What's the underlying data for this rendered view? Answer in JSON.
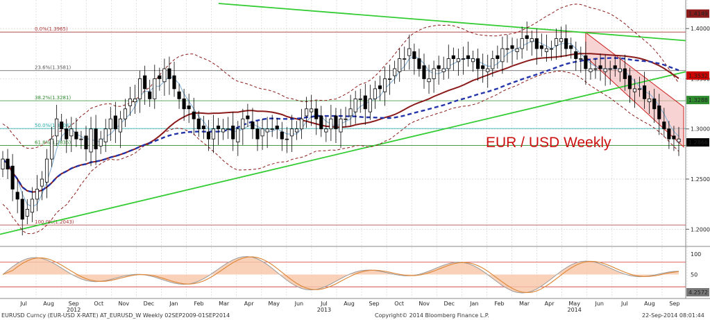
{
  "chart_data": {
    "type": "candlestick",
    "title": "EUR / USD Weekly",
    "x_months": [
      "Jul",
      "Aug",
      "Sep",
      "Oct",
      "Nov",
      "Dec",
      "Jan",
      "Feb",
      "Mar",
      "Apr",
      "May",
      "Jun",
      "Jul",
      "Aug",
      "Sep",
      "Oct",
      "Nov",
      "Dec",
      "Jan",
      "Feb",
      "Mar",
      "Apr",
      "May",
      "Jun",
      "Jul",
      "Aug",
      "Sep"
    ],
    "x_years": [
      {
        "label": "2012",
        "month_index": 2
      },
      {
        "label": "2013",
        "month_index": 12
      },
      {
        "label": "2014",
        "month_index": 22
      }
    ],
    "y_ticks": [
      "1.4000",
      "1.3500",
      "1.3000",
      "1.2500",
      "1.2000"
    ],
    "ylim": [
      1.185,
      1.425
    ],
    "price_labels": [
      {
        "text": "1.4149",
        "value": 1.4149,
        "color": "#8b1a1a"
      },
      {
        "text": "1.3532",
        "value": 1.3532,
        "color": "#cc0000"
      },
      {
        "text": "1.3288",
        "value": 1.3288,
        "color": "#2e8b2e"
      },
      {
        "text": "1.2866",
        "value": 1.2866,
        "color": "#000000"
      }
    ],
    "fib_levels": [
      {
        "label": "0.0%(1.3965)",
        "value": 1.3965,
        "color": "#a33"
      },
      {
        "label": "23.6%(1.3581)",
        "value": 1.3581,
        "color": "#555"
      },
      {
        "label": "38.2%(1.3281)",
        "value": 1.3281,
        "color": "#2e8b2e"
      },
      {
        "label": "50.0%(1.3004)",
        "value": 1.3004,
        "color": "#2aa"
      },
      {
        "label": "61.8%(1.2835)",
        "value": 1.2835,
        "color": "#2e8b2e"
      },
      {
        "label": "100.0%(1.2043)",
        "value": 1.2043,
        "color": "#a33"
      }
    ],
    "weekly_close": [
      1.27,
      1.26,
      1.24,
      1.23,
      1.21,
      1.22,
      1.23,
      1.24,
      1.25,
      1.27,
      1.29,
      1.31,
      1.3,
      1.29,
      1.3,
      1.29,
      1.29,
      1.28,
      1.3,
      1.28,
      1.29,
      1.3,
      1.31,
      1.3,
      1.31,
      1.32,
      1.33,
      1.33,
      1.35,
      1.34,
      1.33,
      1.35,
      1.35,
      1.36,
      1.35,
      1.34,
      1.33,
      1.32,
      1.32,
      1.31,
      1.3,
      1.3,
      1.29,
      1.3,
      1.3,
      1.3,
      1.3,
      1.29,
      1.3,
      1.31,
      1.31,
      1.3,
      1.29,
      1.3,
      1.3,
      1.3,
      1.3,
      1.29,
      1.29,
      1.3,
      1.3,
      1.31,
      1.32,
      1.32,
      1.31,
      1.3,
      1.3,
      1.31,
      1.3,
      1.31,
      1.31,
      1.32,
      1.33,
      1.33,
      1.32,
      1.33,
      1.34,
      1.34,
      1.35,
      1.35,
      1.36,
      1.37,
      1.37,
      1.38,
      1.37,
      1.36,
      1.35,
      1.35,
      1.36,
      1.36,
      1.36,
      1.37,
      1.37,
      1.37,
      1.37,
      1.37,
      1.37,
      1.36,
      1.36,
      1.36,
      1.37,
      1.37,
      1.38,
      1.38,
      1.38,
      1.38,
      1.39,
      1.39,
      1.39,
      1.38,
      1.38,
      1.38,
      1.38,
      1.39,
      1.39,
      1.38,
      1.38,
      1.37,
      1.37,
      1.36,
      1.36,
      1.36,
      1.36,
      1.36,
      1.36,
      1.36,
      1.36,
      1.35,
      1.34,
      1.34,
      1.34,
      1.33,
      1.33,
      1.32,
      1.31,
      1.3,
      1.29,
      1.29,
      1.29
    ],
    "oscillator": {
      "y_ticks": [
        "100",
        "50"
      ],
      "last_value_label": "4.2572",
      "ylim": [
        0,
        110
      ]
    },
    "annotations": [
      "EUR / USD Weekly"
    ]
  },
  "footer": {
    "left": "EURUSD Curncy (EUR-USD X-RATE) AT_EURUSD_W  Weekly 02SEP2009-01SEP2014",
    "center": "Copyright© 2014 Bloomberg Finance L.P.",
    "right": "22-Sep-2014 08:01:44"
  },
  "colors": {
    "candle_up": "#ffffff",
    "candle_down": "#000000",
    "ma_short": "#8fb6d9",
    "ma_mid": "#2233aa",
    "ma_long": "#8b1a1a",
    "trendline": "#33cc33",
    "bollinger": "#8b1a1a",
    "channel_fill": "#f4b6b6"
  }
}
